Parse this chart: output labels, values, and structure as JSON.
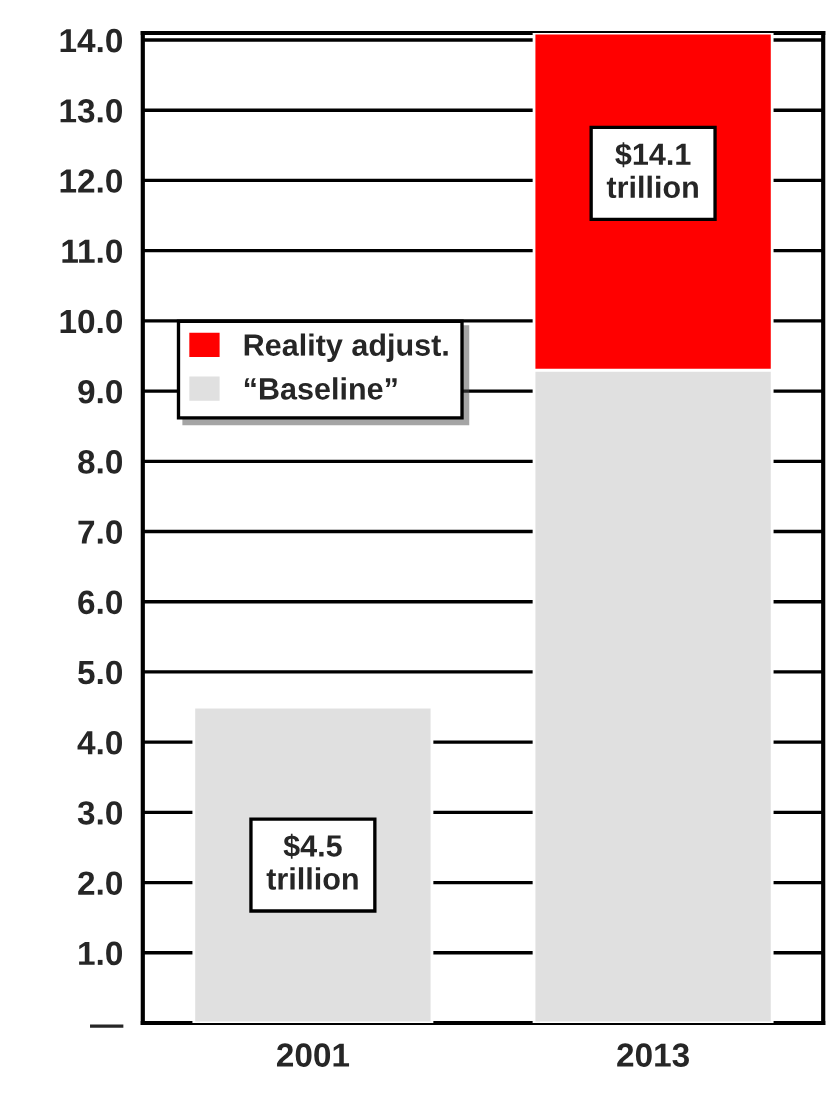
{
  "chart_data": {
    "type": "bar",
    "stacked": true,
    "categories": [
      "2001",
      "2013"
    ],
    "series": [
      {
        "name": "“Baseline”",
        "color": "#e0e0e0",
        "values": [
          4.5,
          9.3
        ]
      },
      {
        "name": "Reality adjust.",
        "color": "#ff0000",
        "values": [
          null,
          4.8
        ]
      }
    ],
    "ylim": [
      0,
      14.1
    ],
    "yticks": [
      {
        "value": 0,
        "label": "—"
      },
      {
        "value": 1,
        "label": "1.0"
      },
      {
        "value": 2,
        "label": "2.0"
      },
      {
        "value": 3,
        "label": "3.0"
      },
      {
        "value": 4,
        "label": "4.0"
      },
      {
        "value": 5,
        "label": "5.0"
      },
      {
        "value": 6,
        "label": "6.0"
      },
      {
        "value": 7,
        "label": "7.0"
      },
      {
        "value": 8,
        "label": "8.0"
      },
      {
        "value": 9,
        "label": "9.0"
      },
      {
        "value": 10,
        "label": "10.0"
      },
      {
        "value": 11,
        "label": "11.0"
      },
      {
        "value": 12,
        "label": "12.0"
      },
      {
        "value": 13,
        "label": "13.0"
      },
      {
        "value": 14,
        "label": "14.0"
      }
    ],
    "totals": [
      "$4.5\ntrillion",
      "$14.1\ntrillion"
    ],
    "grid": "y",
    "legend": "left"
  }
}
